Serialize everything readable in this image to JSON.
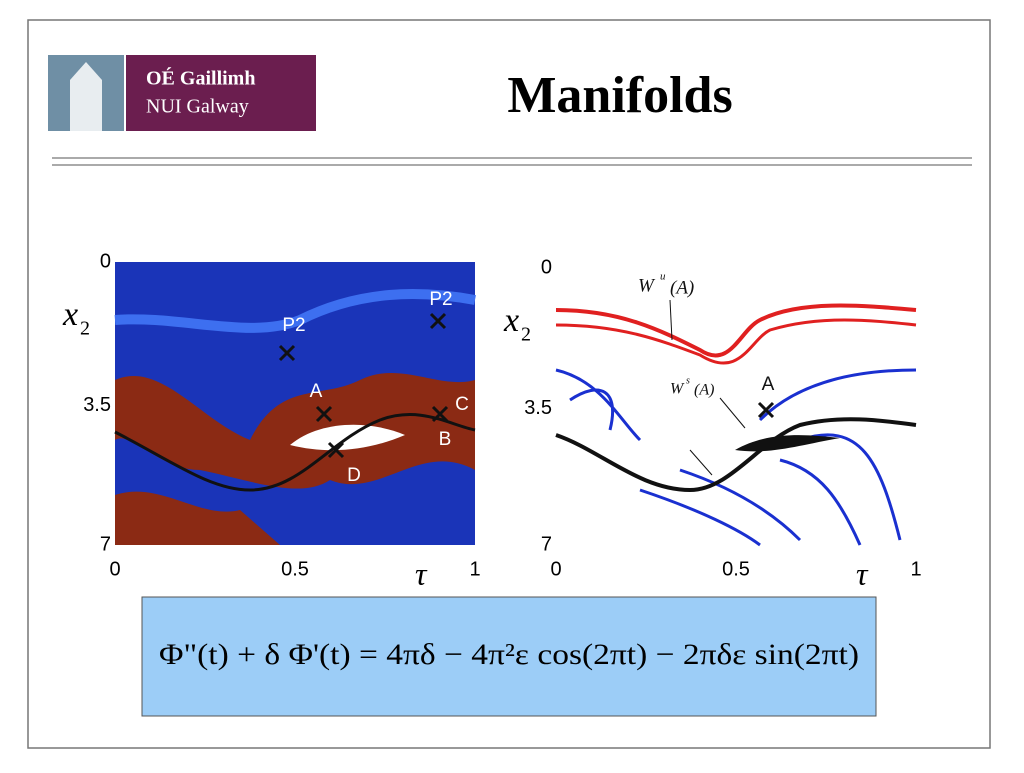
{
  "header": {
    "title": "Manifolds",
    "logo_lines": [
      "OÉ Gaillimh",
      "NUI Galway"
    ]
  },
  "figures": [
    {
      "y_ticks": [
        "0",
        "3.5",
        "7"
      ],
      "x_ticks": [
        "0",
        "0.5",
        "1"
      ],
      "y_label": "x",
      "y_label_sub": "2",
      "x_label": "τ",
      "labels": [
        "P2",
        "P2",
        "A",
        "B",
        "C",
        "D"
      ]
    },
    {
      "y_ticks": [
        "0",
        "3.5",
        "7"
      ],
      "x_ticks": [
        "0",
        "0.5",
        "1"
      ],
      "y_label": "x",
      "y_label_sub": "2",
      "x_label": "τ",
      "labels": [
        "A",
        "W",
        "u",
        "(A)",
        "W",
        "s",
        "(A)"
      ]
    }
  ],
  "equation": "Φ\"(t) + δ Φ'(t) = 4πδ − 4π²ε cos(2πt) − 2πδε sin(2πt)"
}
